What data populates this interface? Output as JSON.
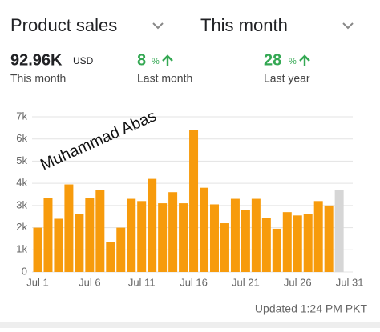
{
  "header": {
    "metric": "Product sales",
    "period": "This month"
  },
  "stats": [
    {
      "value": "92.96K",
      "unit": "USD",
      "label": "This month"
    },
    {
      "value": "8",
      "unit": "%",
      "label": "Last month"
    },
    {
      "value": "28",
      "unit": "%",
      "label": "Last year"
    }
  ],
  "watermark": "Muhammad Abas",
  "footer": "Updated 1:24 PM PKT",
  "chart_data": {
    "type": "bar",
    "categories": [
      "Jul 1",
      null,
      null,
      null,
      null,
      "Jul 6",
      null,
      null,
      null,
      null,
      "Jul 11",
      null,
      null,
      null,
      null,
      "Jul 16",
      null,
      null,
      null,
      null,
      "Jul 21",
      null,
      null,
      null,
      null,
      "Jul 26",
      null,
      null,
      null,
      null,
      "Jul 31"
    ],
    "values": [
      2000,
      3350,
      2400,
      3950,
      2600,
      3350,
      3700,
      1350,
      2000,
      3300,
      3200,
      4200,
      3100,
      3600,
      3100,
      6400,
      3800,
      3050,
      2200,
      3300,
      2800,
      3300,
      2450,
      1950,
      2700,
      2550,
      2600,
      3200,
      3000,
      3700,
      null
    ],
    "colors": [
      "#f79b0c",
      "#f79b0c",
      "#f79b0c",
      "#f79b0c",
      "#f79b0c",
      "#f79b0c",
      "#f79b0c",
      "#f79b0c",
      "#f79b0c",
      "#f79b0c",
      "#f79b0c",
      "#f79b0c",
      "#f79b0c",
      "#f79b0c",
      "#f79b0c",
      "#f79b0c",
      "#f79b0c",
      "#f79b0c",
      "#f79b0c",
      "#f79b0c",
      "#f79b0c",
      "#f79b0c",
      "#f79b0c",
      "#f79b0c",
      "#f79b0c",
      "#f79b0c",
      "#f79b0c",
      "#f79b0c",
      "#f79b0c",
      "#d6d6d6",
      "#d6d6d6"
    ],
    "ylim": [
      0,
      7000
    ],
    "yticks": [
      0,
      {
        "value": 1000,
        "label": "1k"
      },
      {
        "value": 2000,
        "label": "2k"
      },
      {
        "value": 3000,
        "label": "3k"
      },
      {
        "value": 4000,
        "label": "4k"
      },
      {
        "value": 5000,
        "label": "5k"
      },
      {
        "value": 6000,
        "label": "6k"
      },
      {
        "value": 7000,
        "label": "7k"
      }
    ],
    "grid": true
  }
}
